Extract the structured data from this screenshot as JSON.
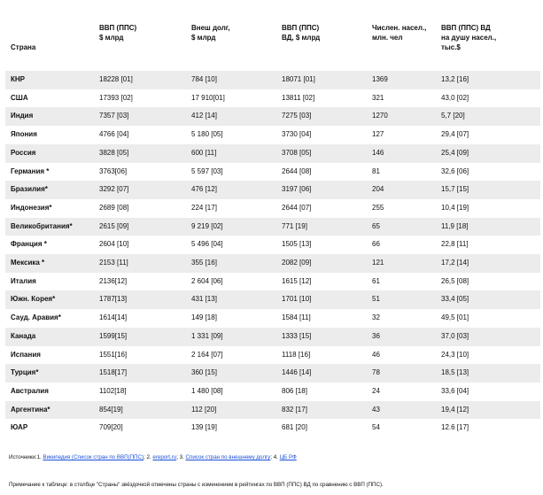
{
  "table": {
    "headers": [
      [
        "Страна"
      ],
      [
        "ВВП (ППС)",
        "$ млрд"
      ],
      [
        "Внеш долг,",
        "$ млрд"
      ],
      [
        "ВВП (ППС)",
        "ВД, $ млрд"
      ],
      [
        "Числен. насел.,",
        "млн. чел"
      ],
      [
        "ВВП (ППС) ВД",
        "на душу насел.,",
        "тыс.$"
      ]
    ],
    "rows": [
      [
        "КНР",
        "18228 [01]",
        "784 [10]",
        "18071 [01]",
        "1369",
        "13,2 [16]"
      ],
      [
        "США",
        "17393 [02]",
        "17 910[01]",
        "13811 [02]",
        "321",
        "43,0 [02]"
      ],
      [
        "Индия",
        "7357 [03]",
        "412 [14]",
        "7275 [03]",
        "1270",
        "5,7 [20]"
      ],
      [
        "Япония",
        "4766 [04]",
        "5 180 [05]",
        "3730 [04]",
        "127",
        "29,4 [07]"
      ],
      [
        "Россия",
        "3828 [05]",
        "600 [11]",
        "3708 [05]",
        "146",
        "25,4 [09]"
      ],
      [
        "Германия *",
        "3763[06]",
        "5 597 [03]",
        "2644 [08]",
        "81",
        "32,6 [06]"
      ],
      [
        "Бразилия*",
        "3292 [07]",
        "476 [12]",
        "3197 [06]",
        "204",
        "15,7 [15]"
      ],
      [
        "Индонезия*",
        "2689 [08]",
        "224 [17]",
        "2644 [07]",
        "255",
        "10,4 [19]"
      ],
      [
        "Великобритания*",
        "2615 [09]",
        "9 219 [02]",
        "771 [19]",
        "65",
        "11,9 [18]"
      ],
      [
        "Франция *",
        "2604 [10]",
        "5 496 [04]",
        "1505 [13]",
        "66",
        "22,8 [11]"
      ],
      [
        "Мексика *",
        "2153 [11]",
        "355 [16]",
        "2082 [09]",
        "121",
        "17,2 [14]"
      ],
      [
        "Италия",
        "2136[12]",
        "2 604 [06]",
        "1615 [12]",
        "61",
        "26,5 [08]"
      ],
      [
        "Южн. Корея*",
        "1787[13]",
        "431 [13]",
        "1701 [10]",
        "51",
        "33,4 [05]"
      ],
      [
        "Сауд. Аравия*",
        "1614[14]",
        "149 [18]",
        "1584 [11]",
        "32",
        "49,5 [01]"
      ],
      [
        "Канада",
        "1599[15]",
        "1 331 [09]",
        "1333 [15]",
        "36",
        "37,0 [03]"
      ],
      [
        "Испания",
        "1551[16]",
        "2 164 [07]",
        "1118 [16]",
        "46",
        "24,3 [10]"
      ],
      [
        "Турция*",
        "1518[17]",
        "360 [15]",
        "1446 [14]",
        "78",
        "18,5 [13]"
      ],
      [
        "Австралия",
        "1102[18]",
        "1 480 [08]",
        "806 [18]",
        "24",
        "33,6 [04]"
      ],
      [
        "Аргентина*",
        "854[19]",
        "112 [20]",
        "832 [17]",
        "43",
        "19,4 [12]"
      ],
      [
        "ЮАР",
        "709[20]",
        "139 [19]",
        "681 [20]",
        "54",
        "12.6 [17]"
      ]
    ]
  },
  "sources": {
    "prefix": "Источники:1. ",
    "link1": "Википедия (Список стран по ВВП(ППС)",
    "sep2": "; 2. ",
    "link2": "ereport.ru",
    "sep3": "; 3. ",
    "link3": "Список стран по внешнему долгу",
    "sep4": "; 4. ",
    "link4": "ЦБ РФ"
  },
  "note": "Примечание к таблице: в столбце \"Страны\" звёздочкой отмечены страны с изменением в рейтингах по ВВП (ППС) ВД по сравнению с ВВП (ППС)."
}
